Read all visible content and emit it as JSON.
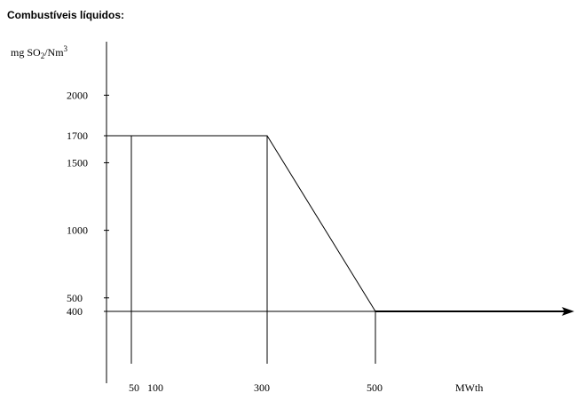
{
  "chart_data": {
    "type": "line",
    "title": "Combustíveis líquidos:",
    "ylabel": "mg SO₂/Nm³",
    "xlabel": "MWth",
    "ylim": [
      0,
      2200
    ],
    "xlim": [
      0,
      700
    ],
    "yticks": [
      2000,
      1700,
      1500,
      1000,
      500,
      400
    ],
    "xticks": [
      50,
      100,
      300,
      500
    ],
    "x_tick_labels": [
      "50",
      "100",
      "300",
      "500"
    ],
    "series": [
      {
        "x": [
          50,
          300,
          500,
          700
        ],
        "y": [
          1700,
          1700,
          400,
          400
        ]
      }
    ],
    "reference_lines": {
      "vertical_x": [
        50,
        300,
        500
      ],
      "horizontal_y": 400
    }
  }
}
